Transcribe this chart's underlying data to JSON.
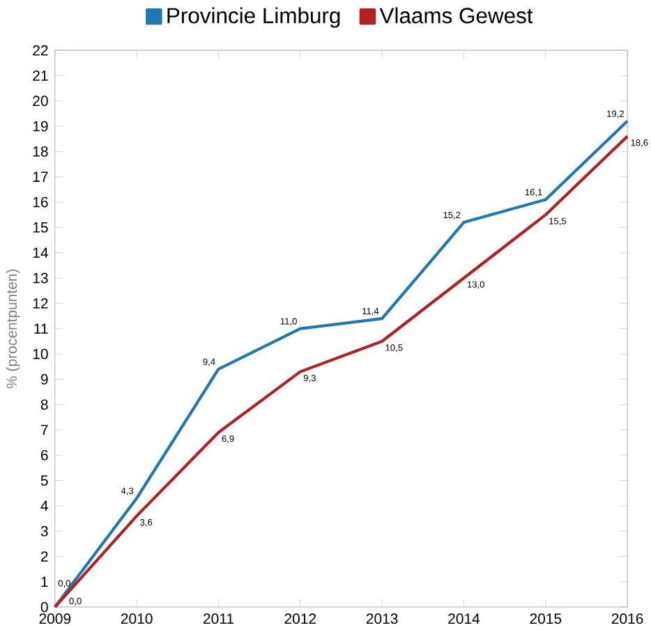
{
  "chart_data": {
    "type": "line",
    "ylabel": "% (procentpunten)",
    "categories": [
      "2009",
      "2010",
      "2011",
      "2012",
      "2013",
      "2014",
      "2015",
      "2016"
    ],
    "series": [
      {
        "name": "Provincie Limburg",
        "color": "#1f78b4",
        "values": [
          0,
          4.3,
          9.4,
          11.0,
          11.4,
          15.2,
          16.1,
          19.2
        ],
        "value_labels": [
          "0,0",
          "4,3",
          "9,4",
          "11,0",
          "11,4",
          "15,2",
          "16,1",
          "19,2"
        ]
      },
      {
        "name": "Vlaams Gewest",
        "color": "#b22222",
        "values": [
          0,
          3.6,
          6.9,
          9.3,
          10.5,
          13.0,
          15.5,
          18.6
        ],
        "value_labels": [
          "0,0",
          "3,6",
          "6,9",
          "9,3",
          "10,5",
          "13,0",
          "15,5",
          "18,6"
        ]
      }
    ],
    "ylim": [
      0,
      22
    ],
    "yticks": [
      0,
      1,
      2,
      3,
      4,
      5,
      6,
      7,
      8,
      9,
      10,
      11,
      12,
      13,
      14,
      15,
      16,
      17,
      18,
      19,
      20,
      21,
      22
    ],
    "legend": "top",
    "grid": false,
    "marker": "none",
    "line_style": "solid"
  }
}
